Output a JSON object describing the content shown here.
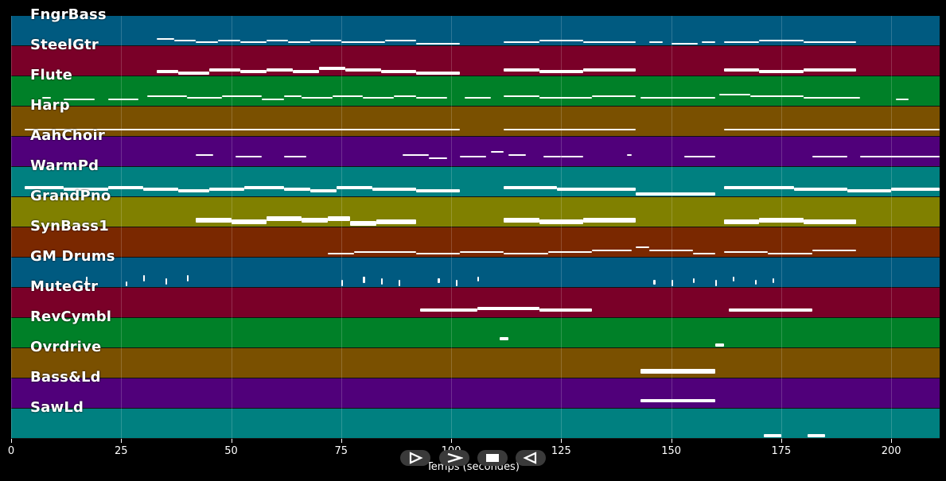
{
  "chart_data": {
    "type": "piano-roll",
    "xlabel": "Temps (secondes)",
    "xlim": [
      0,
      211
    ],
    "xticks": [
      0,
      25,
      50,
      75,
      100,
      125,
      150,
      175,
      200
    ],
    "tracks": [
      {
        "name": "FngrBass",
        "color": "#005a80",
        "notes": [
          [
            33,
            37,
            47,
            1
          ],
          [
            37,
            42,
            46,
            1
          ],
          [
            42,
            47,
            45,
            1
          ],
          [
            47,
            52,
            46,
            1
          ],
          [
            52,
            58,
            45,
            1
          ],
          [
            58,
            63,
            46,
            1
          ],
          [
            63,
            68,
            45,
            1
          ],
          [
            68,
            75,
            46,
            1
          ],
          [
            75,
            85,
            45,
            1
          ],
          [
            85,
            92,
            46,
            1
          ],
          [
            92,
            102,
            44,
            1
          ],
          [
            112,
            120,
            45,
            1
          ],
          [
            120,
            130,
            46,
            1
          ],
          [
            130,
            142,
            45,
            1
          ],
          [
            145,
            148,
            45,
            1
          ],
          [
            150,
            156,
            44,
            1
          ],
          [
            157,
            160,
            45,
            1
          ],
          [
            162,
            170,
            45,
            1
          ],
          [
            170,
            180,
            46,
            1
          ],
          [
            180,
            192,
            45,
            1
          ]
        ]
      },
      {
        "name": "SteelGtr",
        "color": "#7a0028",
        "notes": [
          [
            33,
            38,
            45,
            2
          ],
          [
            38,
            45,
            44,
            2
          ],
          [
            45,
            52,
            46,
            2
          ],
          [
            52,
            58,
            45,
            2
          ],
          [
            58,
            64,
            46,
            2
          ],
          [
            64,
            70,
            45,
            2
          ],
          [
            70,
            76,
            47,
            2
          ],
          [
            76,
            84,
            46,
            2
          ],
          [
            84,
            92,
            45,
            2
          ],
          [
            92,
            102,
            44,
            2
          ],
          [
            112,
            120,
            46,
            2
          ],
          [
            120,
            130,
            45,
            2
          ],
          [
            130,
            142,
            46,
            2
          ],
          [
            162,
            170,
            46,
            2
          ],
          [
            170,
            180,
            45,
            2
          ],
          [
            180,
            192,
            46,
            2
          ]
        ]
      },
      {
        "name": "Flute",
        "color": "#008028",
        "notes": [
          [
            7,
            9,
            48,
            1
          ],
          [
            12,
            19,
            47,
            1
          ],
          [
            22,
            29,
            47,
            1
          ],
          [
            31,
            40,
            49,
            1
          ],
          [
            40,
            48,
            48,
            1
          ],
          [
            48,
            57,
            49,
            1
          ],
          [
            57,
            62,
            47,
            1
          ],
          [
            62,
            66,
            49,
            1
          ],
          [
            66,
            73,
            48,
            1
          ],
          [
            73,
            80,
            49,
            1
          ],
          [
            80,
            87,
            48,
            1
          ],
          [
            87,
            92,
            49,
            1
          ],
          [
            92,
            99,
            48,
            1
          ],
          [
            103,
            109,
            48,
            1
          ],
          [
            112,
            120,
            49,
            1
          ],
          [
            120,
            132,
            48,
            1
          ],
          [
            132,
            142,
            49,
            1
          ],
          [
            143,
            160,
            48,
            1
          ],
          [
            161,
            168,
            50,
            1
          ],
          [
            168,
            180,
            49,
            1
          ],
          [
            180,
            193,
            48,
            1
          ],
          [
            201,
            204,
            47,
            1
          ]
        ]
      },
      {
        "name": "Harp",
        "color": "#7a5000",
        "notes": [
          [
            3,
            102,
            47,
            1
          ],
          [
            112,
            142,
            47,
            1
          ],
          [
            162,
            211,
            47,
            1
          ]
        ]
      },
      {
        "name": "AahChoir",
        "color": "#50007a",
        "notes": [
          [
            42,
            46,
            50,
            1
          ],
          [
            51,
            57,
            49,
            1
          ],
          [
            62,
            67,
            49,
            1
          ],
          [
            89,
            95,
            50,
            1
          ],
          [
            95,
            99,
            48,
            1
          ],
          [
            102,
            108,
            49,
            1
          ],
          [
            109,
            112,
            52,
            1
          ],
          [
            113,
            117,
            50,
            1
          ],
          [
            121,
            125,
            49,
            1
          ],
          [
            125,
            130,
            49,
            1
          ],
          [
            140,
            141,
            50,
            1
          ],
          [
            153,
            160,
            49,
            1
          ],
          [
            182,
            190,
            49,
            1
          ],
          [
            193,
            211,
            49,
            1
          ]
        ]
      },
      {
        "name": "WarmPd",
        "color": "#008080",
        "notes": [
          [
            3,
            12,
            48,
            2
          ],
          [
            12,
            22,
            47,
            2
          ],
          [
            22,
            30,
            48,
            2
          ],
          [
            30,
            38,
            47,
            2
          ],
          [
            38,
            45,
            46,
            2
          ],
          [
            45,
            53,
            47,
            2
          ],
          [
            53,
            62,
            48,
            2
          ],
          [
            62,
            68,
            47,
            2
          ],
          [
            68,
            74,
            46,
            2
          ],
          [
            74,
            82,
            48,
            2
          ],
          [
            82,
            92,
            47,
            2
          ],
          [
            92,
            102,
            46,
            2
          ],
          [
            112,
            124,
            48,
            2
          ],
          [
            124,
            142,
            47,
            2
          ],
          [
            142,
            160,
            44,
            2
          ],
          [
            162,
            178,
            48,
            2
          ],
          [
            178,
            190,
            47,
            2
          ],
          [
            190,
            200,
            46,
            2
          ],
          [
            200,
            211,
            47,
            2
          ]
        ]
      },
      {
        "name": "GrandPno",
        "color": "#808000",
        "notes": [
          [
            42,
            50,
            46,
            3
          ],
          [
            50,
            58,
            45,
            3
          ],
          [
            58,
            66,
            47,
            3
          ],
          [
            66,
            72,
            46,
            3
          ],
          [
            72,
            77,
            47,
            3
          ],
          [
            77,
            83,
            44,
            3
          ],
          [
            83,
            92,
            45,
            3
          ],
          [
            112,
            120,
            46,
            3
          ],
          [
            120,
            130,
            45,
            3
          ],
          [
            130,
            142,
            46,
            3
          ],
          [
            162,
            170,
            45,
            3
          ],
          [
            170,
            180,
            46,
            3
          ],
          [
            180,
            192,
            45,
            3
          ]
        ]
      },
      {
        "name": "SynBass1",
        "color": "#7a2800",
        "notes": [
          [
            72,
            78,
            45,
            1
          ],
          [
            78,
            92,
            46,
            1
          ],
          [
            92,
            102,
            45,
            1
          ],
          [
            102,
            112,
            46,
            1
          ],
          [
            112,
            122,
            45,
            1
          ],
          [
            122,
            132,
            46,
            1
          ],
          [
            132,
            141,
            47,
            1
          ],
          [
            142,
            145,
            49,
            1
          ],
          [
            145,
            155,
            47,
            1
          ],
          [
            155,
            160,
            45,
            1
          ],
          [
            162,
            172,
            46,
            1
          ],
          [
            172,
            182,
            45,
            1
          ],
          [
            182,
            192,
            47,
            1
          ]
        ]
      },
      {
        "name": "GM Drums",
        "color": "#005a80",
        "notes": [
          [
            17,
            17.4,
            46,
            4
          ],
          [
            26,
            26.4,
            44,
            3
          ],
          [
            30,
            30.4,
            47,
            4
          ],
          [
            35,
            35.4,
            45,
            4
          ],
          [
            40,
            40.4,
            47,
            4
          ],
          [
            75,
            75.4,
            44,
            4
          ],
          [
            80,
            80.4,
            46,
            4
          ],
          [
            84,
            84.4,
            45,
            4
          ],
          [
            88,
            88.4,
            44,
            4
          ],
          [
            97,
            97.4,
            46,
            3
          ],
          [
            101,
            101.4,
            44,
            4
          ],
          [
            106,
            106.4,
            47,
            3
          ],
          [
            146,
            146.4,
            45,
            3
          ],
          [
            150,
            150.4,
            44,
            4
          ],
          [
            155,
            155.4,
            46,
            3
          ],
          [
            160,
            160.4,
            44,
            4
          ],
          [
            164,
            164.4,
            47,
            3
          ],
          [
            169,
            169.4,
            45,
            3
          ],
          [
            173,
            173.4,
            46,
            3
          ]
        ]
      },
      {
        "name": "MuteGtr",
        "color": "#7a0028",
        "notes": [
          [
            93,
            106,
            47,
            2
          ],
          [
            106,
            120,
            48,
            2
          ],
          [
            120,
            132,
            47,
            2
          ],
          [
            163,
            182,
            47,
            2
          ]
        ]
      },
      {
        "name": "RevCymbl",
        "color": "#008028",
        "notes": [
          [
            111,
            113,
            48,
            2
          ],
          [
            160,
            162,
            44,
            2
          ]
        ]
      },
      {
        "name": "Ovrdrive",
        "color": "#7a5000",
        "notes": [
          [
            143,
            160,
            46,
            3
          ]
        ]
      },
      {
        "name": "Bass&Ld",
        "color": "#50007a",
        "notes": [
          [
            143,
            160,
            47,
            2
          ]
        ]
      },
      {
        "name": "SawLd",
        "color": "#008080",
        "notes": [
          [
            171,
            175,
            44,
            2
          ],
          [
            181,
            185,
            44,
            2
          ]
        ]
      }
    ]
  },
  "controls": [
    {
      "name": "play-button",
      "icon": "play-icon"
    },
    {
      "name": "next-button",
      "icon": "next-icon"
    },
    {
      "name": "stop-button",
      "icon": "stop-icon"
    },
    {
      "name": "prev-button",
      "icon": "prev-icon"
    }
  ]
}
